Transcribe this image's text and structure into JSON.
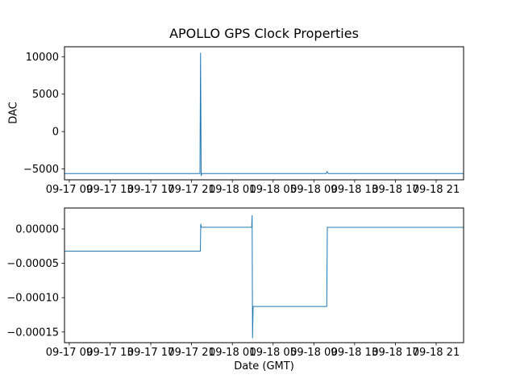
{
  "title": "APOLLO GPS Clock Properties",
  "xlabel": "Date (GMT)",
  "colors": {
    "line": "#1f77b4",
    "spine": "#000000",
    "text": "#000000",
    "background": "#ffffff"
  },
  "chart_data": [
    {
      "type": "line",
      "name": "dac",
      "title": "APOLLO GPS Clock Properties",
      "ylabel": "DAC",
      "xlabel": "",
      "grid": false,
      "legend": null,
      "x_unit": "hours from 09-17 00:00 (GMT)",
      "xlim": [
        8.53,
        47.69
      ],
      "ylim": [
        -6450,
        11330
      ],
      "xticks": [
        {
          "v": 9,
          "label": "09-17 09"
        },
        {
          "v": 13,
          "label": "09-17 13"
        },
        {
          "v": 17,
          "label": "09-17 17"
        },
        {
          "v": 21,
          "label": "09-17 21"
        },
        {
          "v": 25,
          "label": "09-18 01"
        },
        {
          "v": 29,
          "label": "09-18 05"
        },
        {
          "v": 33,
          "label": "09-18 09"
        },
        {
          "v": 37,
          "label": "09-18 13"
        },
        {
          "v": 41,
          "label": "09-18 17"
        },
        {
          "v": 45,
          "label": "09-18 21"
        }
      ],
      "yticks": [
        {
          "v": 10000,
          "label": "10000"
        },
        {
          "v": 5000,
          "label": "5000"
        },
        {
          "v": 0,
          "label": "0"
        },
        {
          "v": -5000,
          "label": "−5000"
        }
      ],
      "points": [
        [
          8.53,
          -5610
        ],
        [
          21.82,
          -5610
        ],
        [
          21.88,
          10540
        ],
        [
          21.94,
          -5930
        ],
        [
          22.0,
          -5610
        ],
        [
          34.2,
          -5610
        ],
        [
          34.3,
          -5340
        ],
        [
          34.4,
          -5610
        ],
        [
          47.69,
          -5610
        ]
      ]
    },
    {
      "type": "line",
      "name": "clock-offset",
      "title": "",
      "ylabel": "",
      "xlabel": "Date (GMT)",
      "grid": false,
      "legend": null,
      "x_unit": "hours from 09-17 00:00 (GMT)",
      "xlim": [
        8.53,
        47.69
      ],
      "ylim": [
        -0.0001655,
        3.05e-05
      ],
      "xticks": [
        {
          "v": 9,
          "label": "09-17 09"
        },
        {
          "v": 13,
          "label": "09-17 13"
        },
        {
          "v": 17,
          "label": "09-17 17"
        },
        {
          "v": 21,
          "label": "09-17 21"
        },
        {
          "v": 25,
          "label": "09-18 01"
        },
        {
          "v": 29,
          "label": "09-18 05"
        },
        {
          "v": 33,
          "label": "09-18 09"
        },
        {
          "v": 37,
          "label": "09-18 13"
        },
        {
          "v": 41,
          "label": "09-18 17"
        },
        {
          "v": 45,
          "label": "09-18 21"
        }
      ],
      "yticks": [
        {
          "v": 0.0,
          "label": "0.00000"
        },
        {
          "v": -5e-05,
          "label": "−0.00005"
        },
        {
          "v": -0.0001,
          "label": "−0.00010"
        },
        {
          "v": -0.00015,
          "label": "−0.00015"
        }
      ],
      "points": [
        [
          8.53,
          -3.23e-05
        ],
        [
          21.86,
          -3.23e-05
        ],
        [
          21.9,
          7.4e-06
        ],
        [
          21.96,
          2.5e-06
        ],
        [
          26.9,
          2.5e-06
        ],
        [
          26.94,
          2e-05
        ],
        [
          26.98,
          -0.000159
        ],
        [
          27.04,
          -0.0001128
        ],
        [
          34.26,
          -0.0001128
        ],
        [
          34.32,
          2.3e-06
        ],
        [
          47.69,
          2.3e-06
        ]
      ]
    }
  ]
}
